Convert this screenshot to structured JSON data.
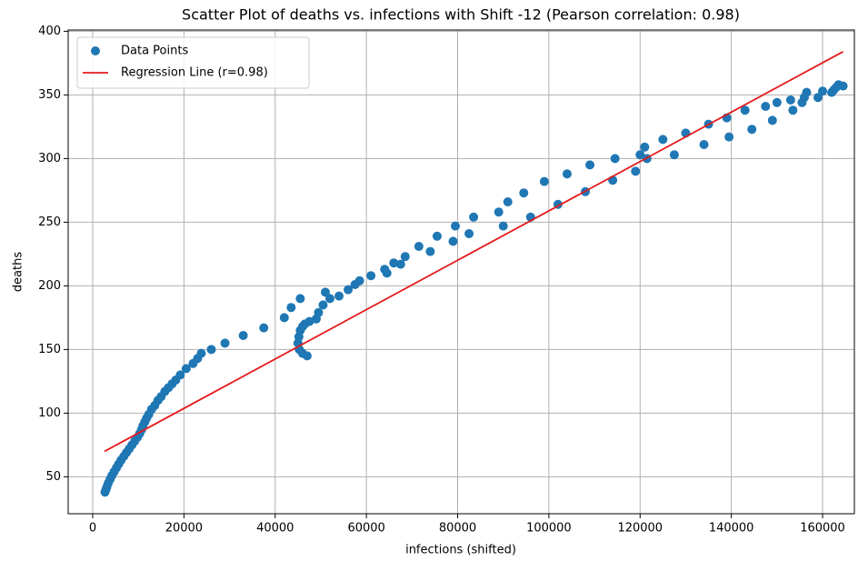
{
  "chart_data": {
    "type": "scatter",
    "title": "Scatter Plot of deaths vs. infections with Shift -12 (Pearson correlation: 0.98)",
    "x_label": "infections (shifted)",
    "y_label": "deaths",
    "xlim": [
      -5380,
      166970
    ],
    "ylim": [
      21,
      401
    ],
    "xticks": [
      0,
      20000,
      40000,
      60000,
      80000,
      100000,
      120000,
      140000,
      160000
    ],
    "yticks": [
      50,
      100,
      150,
      200,
      250,
      300,
      350,
      400
    ],
    "grid": true,
    "legend": "upper left",
    "series": [
      {
        "name": "Data Points",
        "type": "scatter",
        "color": "#1f77b4",
        "x": [
          2700,
          2900,
          3100,
          3400,
          3800,
          4200,
          4700,
          5200,
          5700,
          6200,
          6800,
          7400,
          8000,
          8600,
          9200,
          9800,
          10300,
          10700,
          11000,
          11400,
          11800,
          12300,
          12900,
          13600,
          14300,
          15000,
          15800,
          16600,
          17400,
          18200,
          19200,
          20500,
          22000,
          23000,
          23800,
          26000,
          29000,
          33000,
          37500,
          42000,
          43500,
          45500,
          45000,
          45200,
          45500,
          46000,
          46500,
          47500,
          49000,
          49500,
          50500,
          52000,
          45300,
          46000,
          47000,
          51000,
          54000,
          56000,
          57500,
          58500,
          61000,
          64000,
          64500,
          66000,
          67500,
          68500,
          71500,
          74000,
          75500,
          79000,
          79500,
          82500,
          83500,
          89000,
          90000,
          91000,
          94500,
          96000,
          99000,
          102000,
          104000,
          108000,
          109000,
          114000,
          114500,
          119000,
          120000,
          121000,
          121500,
          125000,
          127500,
          130000,
          134000,
          135000,
          139000,
          139500,
          143000,
          144500,
          147500,
          149000,
          150000,
          153000,
          153500,
          155500,
          156000,
          156500,
          159000,
          160000,
          162000,
          162500,
          163000,
          163500,
          164500
        ],
        "values": [
          38,
          40,
          42,
          45,
          48,
          51,
          54,
          57,
          60,
          63,
          66,
          69,
          72,
          75,
          78,
          81,
          84,
          87,
          90,
          93,
          96,
          99,
          103,
          106,
          110,
          113,
          117,
          120,
          123,
          126,
          130,
          135,
          139,
          143,
          147,
          150,
          155,
          161,
          167,
          175,
          183,
          190,
          155,
          160,
          165,
          168,
          170,
          172,
          174,
          179,
          185,
          190,
          150,
          147,
          145,
          195,
          192,
          197,
          201,
          204,
          208,
          213,
          210,
          218,
          217,
          223,
          231,
          227,
          239,
          235,
          247,
          241,
          254,
          258,
          247,
          266,
          273,
          254,
          282,
          264,
          288,
          274,
          295,
          283,
          300,
          290,
          303,
          309,
          300,
          315,
          303,
          320,
          311,
          327,
          332,
          317,
          338,
          323,
          341,
          330,
          344,
          346,
          338,
          344,
          348,
          352,
          348,
          353,
          352,
          354,
          356,
          358,
          357
        ]
      },
      {
        "name": "Regression Line (r=0.98)",
        "type": "line",
        "color": "#e41a1c",
        "x": [
          2600,
          164500
        ],
        "values": [
          70,
          384
        ]
      }
    ]
  }
}
